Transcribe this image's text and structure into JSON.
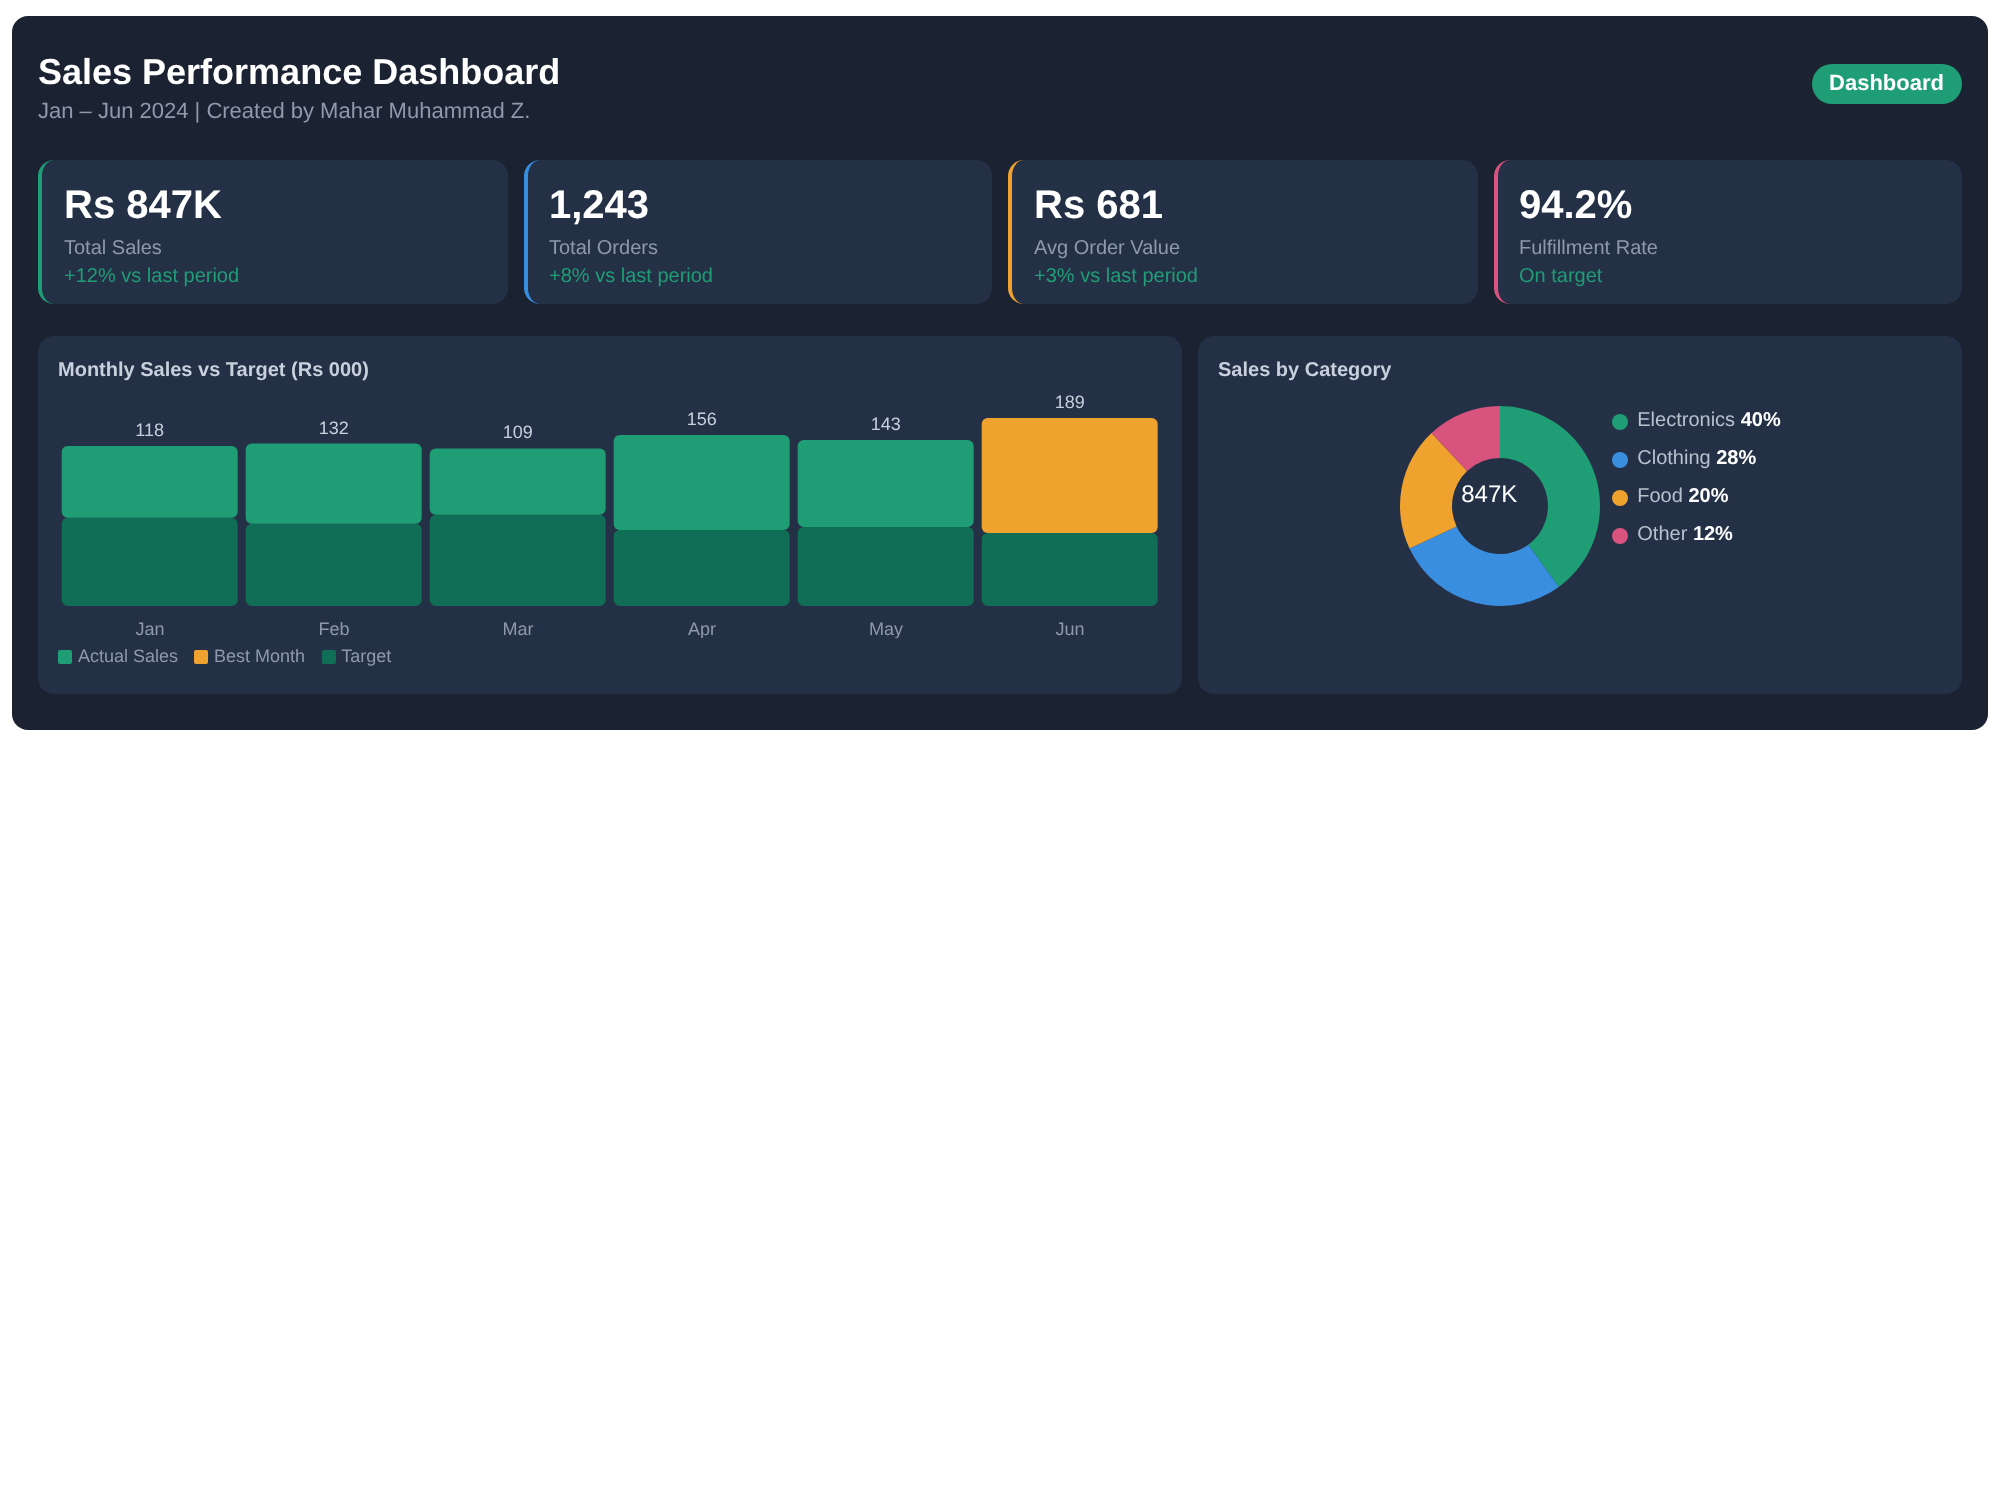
{
  "chart_data": [
    {
      "type": "other",
      "title": "Sales Performance Dashboard",
      "subtitle": "Jan – Jun 2024 | Created by Mahar Muhammad Z.",
      "annotations": [
        "Dashboard",
        "Rs 847K",
        "Total Sales",
        "+12% vs last period",
        "1,243",
        "Total Orders",
        "+8% vs last period",
        "Rs 681",
        "Avg Order Value",
        "+3% vs last period",
        "94.2%",
        "Fulfillment Rate",
        "On target"
      ]
    },
    {
      "type": "bar",
      "title": "Monthly Sales vs Target (Rs 000)",
      "stacked": true,
      "legend": "bottom",
      "categories": [
        "Jan",
        "Feb",
        "Mar",
        "Apr",
        "May",
        "Jun"
      ],
      "series": [
        {
          "name": "Target",
          "color": "#0f6e55",
          "values": [
            145,
            135,
            150,
            125,
            130,
            120
          ]
        },
        {
          "name": "Actual Sales",
          "color": "#1f9e76",
          "values": [
            118,
            132,
            109,
            156,
            143,
            null
          ],
          "value_labels": [
            "118",
            "132",
            "109",
            "156",
            "143",
            null
          ]
        },
        {
          "name": "Best Month",
          "color": "#f0a22e",
          "values": [
            null,
            null,
            null,
            null,
            null,
            189
          ],
          "value_labels": [
            null,
            null,
            null,
            null,
            null,
            "189"
          ]
        }
      ]
    },
    {
      "type": "donut",
      "title": "Sales by Category",
      "legend": "right",
      "categories": [
        "Electronics",
        "Clothing",
        "Food",
        "Other"
      ],
      "values": [
        40,
        28,
        20,
        12
      ],
      "value_labels": [
        "40%",
        "28%",
        "20%",
        "12%"
      ],
      "colors": [
        "#1f9e76",
        "#3a8ee0",
        "#f0a22e",
        "#d9537f"
      ],
      "annotations": [
        "847K"
      ]
    }
  ]
}
